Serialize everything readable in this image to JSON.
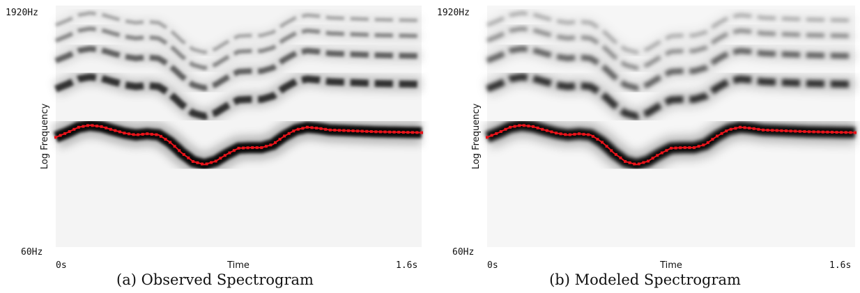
{
  "chart_data": [
    {
      "type": "heatmap",
      "caption": "(a) Observed Spectrogram",
      "xlabel": "Time",
      "ylabel": "Log Frequency",
      "x_ticks": [
        "0s",
        "1.6s"
      ],
      "y_ticks": [
        "60Hz",
        "1920Hz"
      ],
      "xlim": [
        0,
        1.6
      ],
      "ylim_hz": [
        60,
        1920
      ],
      "y_scale": "log",
      "colormap": "grayscale (white = low, black = high energy)",
      "pitch_track_color": "#e8141b",
      "pitch_track_hz": [
        [
          0.0,
          290
        ],
        [
          0.05,
          310
        ],
        [
          0.1,
          335
        ],
        [
          0.15,
          345
        ],
        [
          0.2,
          338
        ],
        [
          0.25,
          322
        ],
        [
          0.3,
          308
        ],
        [
          0.35,
          300
        ],
        [
          0.4,
          305
        ],
        [
          0.45,
          300
        ],
        [
          0.5,
          270
        ],
        [
          0.55,
          232
        ],
        [
          0.6,
          205
        ],
        [
          0.65,
          196
        ],
        [
          0.7,
          206
        ],
        [
          0.75,
          228
        ],
        [
          0.8,
          248
        ],
        [
          0.85,
          250
        ],
        [
          0.9,
          250
        ],
        [
          0.95,
          262
        ],
        [
          1.0,
          295
        ],
        [
          1.05,
          323
        ],
        [
          1.1,
          335
        ],
        [
          1.15,
          330
        ],
        [
          1.2,
          322
        ],
        [
          1.3,
          318
        ],
        [
          1.4,
          314
        ],
        [
          1.5,
          312
        ],
        [
          1.6,
          310
        ]
      ]
    },
    {
      "type": "heatmap",
      "caption": "(b) Modeled Spectrogram",
      "xlabel": "Time",
      "ylabel": "Log Frequency",
      "x_ticks": [
        "0s",
        "1.6s"
      ],
      "y_ticks": [
        "60Hz",
        "1920Hz"
      ],
      "xlim": [
        0,
        1.6
      ],
      "ylim_hz": [
        60,
        1920
      ],
      "y_scale": "log",
      "colormap": "grayscale (white = low, black = high energy)",
      "pitch_track_color": "#e8141b",
      "pitch_track_hz": [
        [
          0.0,
          290
        ],
        [
          0.05,
          310
        ],
        [
          0.1,
          335
        ],
        [
          0.15,
          345
        ],
        [
          0.2,
          338
        ],
        [
          0.25,
          322
        ],
        [
          0.3,
          308
        ],
        [
          0.35,
          300
        ],
        [
          0.4,
          305
        ],
        [
          0.45,
          300
        ],
        [
          0.5,
          270
        ],
        [
          0.55,
          232
        ],
        [
          0.6,
          205
        ],
        [
          0.65,
          196
        ],
        [
          0.7,
          206
        ],
        [
          0.75,
          228
        ],
        [
          0.8,
          248
        ],
        [
          0.85,
          250
        ],
        [
          0.9,
          250
        ],
        [
          0.95,
          262
        ],
        [
          1.0,
          295
        ],
        [
          1.05,
          323
        ],
        [
          1.1,
          335
        ],
        [
          1.15,
          330
        ],
        [
          1.2,
          322
        ],
        [
          1.3,
          318
        ],
        [
          1.4,
          314
        ],
        [
          1.5,
          312
        ],
        [
          1.6,
          310
        ]
      ]
    }
  ]
}
